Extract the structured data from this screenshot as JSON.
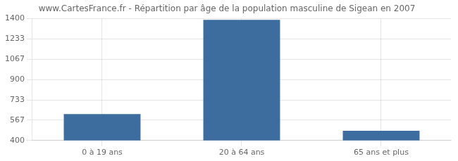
{
  "chart_data": {
    "type": "bar",
    "title": "www.CartesFrance.fr - Répartition par âge de la population masculine de Sigean en 2007",
    "categories": [
      "0 à 19 ans",
      "20 à 64 ans",
      "65 ans et plus"
    ],
    "values": [
      617,
      1390,
      480
    ],
    "color": "#3d6d9e",
    "ylim": [
      400,
      1400
    ],
    "yticks": [
      400,
      567,
      733,
      900,
      1067,
      1233,
      1400
    ],
    "grid": true
  }
}
